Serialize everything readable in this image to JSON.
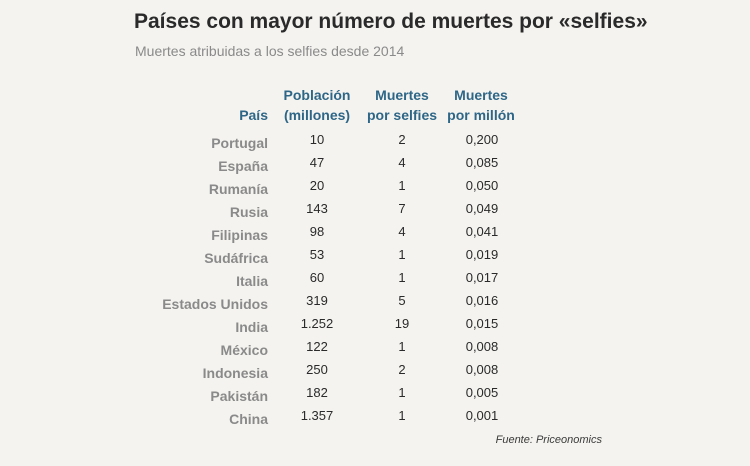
{
  "title": "Países con mayor número de muertes por «selfies»",
  "subtitle": "Muertes atribuidas a los selfies desde 2014",
  "headers": {
    "country": "País",
    "population": [
      "Población",
      "(millones)"
    ],
    "deaths": [
      "Muertes",
      "por selfies"
    ],
    "rate": [
      "Muertes",
      "por millón"
    ]
  },
  "source": "Fuente: Priceonomics",
  "colors": {
    "background": "#f4f3ef",
    "header": "#2e6687",
    "country_text": "#8a8a8a",
    "value_text": "#2a2a2a"
  },
  "chart_data": {
    "type": "table",
    "title": "Países con mayor número de muertes por «selfies»",
    "subtitle": "Muertes atribuidas a los selfies desde 2014",
    "columns": [
      "País",
      "Población (millones)",
      "Muertes por selfies",
      "Muertes por millón"
    ],
    "rows": [
      {
        "country": "Portugal",
        "population": "10",
        "deaths": "2",
        "rate": "0,200"
      },
      {
        "country": "España",
        "population": "47",
        "deaths": "4",
        "rate": "0,085"
      },
      {
        "country": "Rumanía",
        "population": "20",
        "deaths": "1",
        "rate": "0,050"
      },
      {
        "country": "Rusia",
        "population": "143",
        "deaths": "7",
        "rate": "0,049"
      },
      {
        "country": "Filipinas",
        "population": "98",
        "deaths": "4",
        "rate": "0,041"
      },
      {
        "country": "Sudáfrica",
        "population": "53",
        "deaths": "1",
        "rate": "0,019"
      },
      {
        "country": "Italia",
        "population": "60",
        "deaths": "1",
        "rate": "0,017"
      },
      {
        "country": "Estados Unidos",
        "population": "319",
        "deaths": "5",
        "rate": "0,016"
      },
      {
        "country": "India",
        "population": "1.252",
        "deaths": "19",
        "rate": "0,015"
      },
      {
        "country": "México",
        "population": "122",
        "deaths": "1",
        "rate": "0,008"
      },
      {
        "country": "Indonesia",
        "population": "250",
        "deaths": "2",
        "rate": "0,008"
      },
      {
        "country": "Pakistán",
        "population": "182",
        "deaths": "1",
        "rate": "0,005"
      },
      {
        "country": "China",
        "population": "1.357",
        "deaths": "1",
        "rate": "0,001"
      }
    ]
  }
}
